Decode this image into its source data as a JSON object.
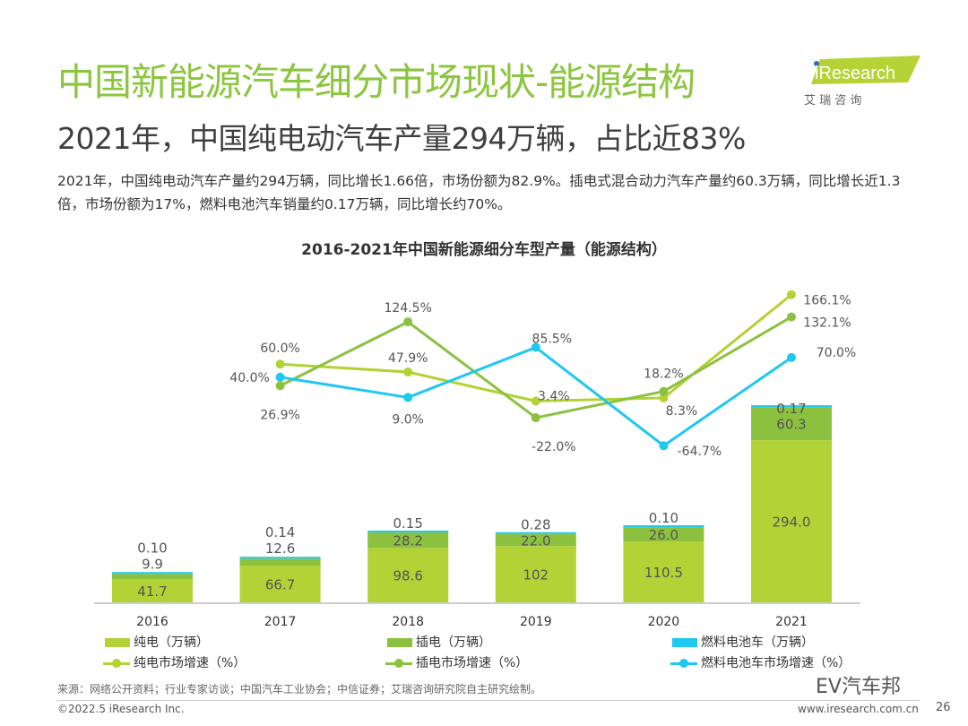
{
  "header": {
    "title": "中国新能源汽车细分市场现状-能源结构",
    "subtitle": "2021年，中国纯电动汽车产量294万辆，占比近83%",
    "description": "2021年，中国纯电动汽车产量约294万辆，同比增长1.66倍，市场份额为82.9%。插电式混合动力汽车产量约60.3万辆，同比增长近1.3倍，市场份额为17%，燃料电池汽车销量约0.17万辆，同比增长约70%。",
    "logo_text": "iResearch",
    "logo_subtext": "艾 瑞 咨 询"
  },
  "chart_data": {
    "type": "bar+line",
    "title": "2016-2021年中国新能源细分车型产量（能源结构）",
    "categories": [
      "2016",
      "2017",
      "2018",
      "2019",
      "2020",
      "2021"
    ],
    "bar_series": [
      {
        "name": "纯电（万辆）",
        "color": "#b2d235",
        "values": [
          41.7,
          66.7,
          98.6,
          102,
          110.5,
          294.0
        ],
        "labels": [
          "41.7",
          "66.7",
          "98.6",
          "102",
          "110.5",
          "294.0"
        ]
      },
      {
        "name": "插电（万辆）",
        "color": "#8cc13f",
        "values": [
          9.9,
          12.6,
          28.2,
          22.0,
          26.0,
          60.3
        ],
        "labels": [
          "9.9",
          "12.6",
          "28.2",
          "22.0",
          "26.0",
          "60.3"
        ]
      },
      {
        "name": "燃料电池车（万辆）",
        "color": "#1fc8ef",
        "values": [
          0.1,
          0.14,
          0.15,
          0.28,
          0.1,
          0.17
        ],
        "labels": [
          "0.10",
          "0.14",
          "0.15",
          "0.28",
          "0.10",
          "0.17"
        ]
      }
    ],
    "line_series": [
      {
        "name": "纯电市场增速（%）",
        "color": "#b2d235",
        "categories": [
          "2017",
          "2018",
          "2019",
          "2020",
          "2021"
        ],
        "values": [
          60.0,
          47.9,
          3.4,
          8.3,
          166.1
        ],
        "labels": [
          "60.0%",
          "47.9%",
          "3.4%",
          "8.3%",
          "166.1%"
        ]
      },
      {
        "name": "插电市场增速（%）",
        "color": "#8cc13f",
        "categories": [
          "2017",
          "2018",
          "2019",
          "2020",
          "2021"
        ],
        "values": [
          26.9,
          124.5,
          -22.0,
          18.2,
          132.1
        ],
        "labels": [
          "26.9%",
          "124.5%",
          "-22.0%",
          "18.2%",
          "132.1%"
        ]
      },
      {
        "name": "燃料电池车市场增速（%）",
        "color": "#1fc8ef",
        "categories": [
          "2017",
          "2018",
          "2019",
          "2020",
          "2021"
        ],
        "values": [
          40.0,
          9.0,
          85.5,
          -64.7,
          70.0
        ],
        "labels": [
          "40.0%",
          "9.0%",
          "85.5%",
          "-64.7%",
          "70.0%"
        ]
      }
    ],
    "legend_position": "bottom",
    "grid": false
  },
  "footer": {
    "source": "来源：网络公开资料；行业专家访谈；中国汽车工业协会；中信证券；艾瑞咨询研究院自主研究绘制。",
    "copyright": "©2022.5 iResearch Inc.",
    "website": "www.iresearch.com.cn",
    "page_number": "26",
    "watermark": "EV汽车邦"
  }
}
